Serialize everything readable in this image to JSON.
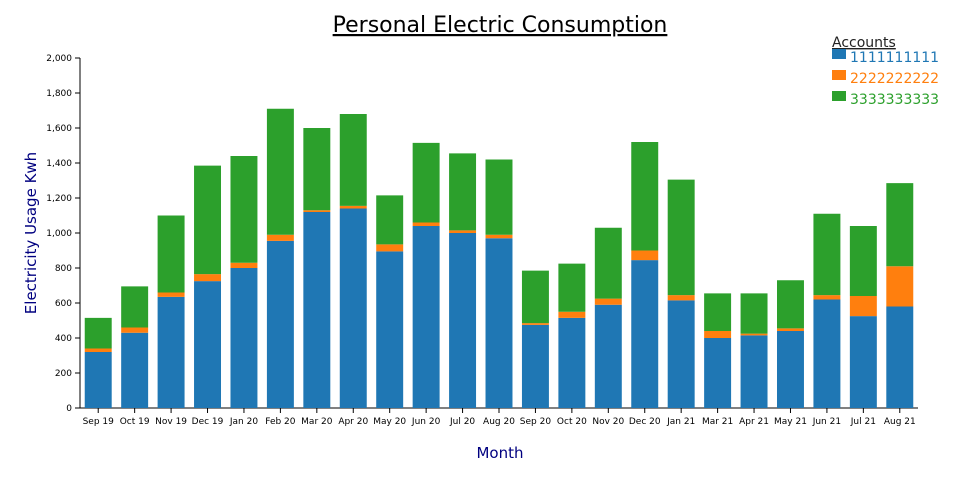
{
  "chart_data": {
    "type": "bar",
    "stacked": true,
    "title": "Personal Electric Consumption",
    "xlabel": "Month",
    "ylabel": "Electricity Usage Kwh",
    "ylim": [
      0,
      2000
    ],
    "yticks": [
      0,
      200,
      400,
      600,
      800,
      1000,
      1200,
      1400,
      1600,
      1800,
      2000
    ],
    "ytick_labels": [
      "0",
      "200",
      "400",
      "600",
      "800",
      "1,000",
      "1,200",
      "1,400",
      "1,600",
      "1,800",
      "2,000"
    ],
    "grid": false,
    "legend": {
      "title": "Accounts",
      "placement": "top-right"
    },
    "categories": [
      "Sep 19",
      "Oct 19",
      "Nov 19",
      "Dec 19",
      "Jan 20",
      "Feb 20",
      "Mar 20",
      "Apr 20",
      "May 20",
      "Jun 20",
      "Jul 20",
      "Aug 20",
      "Sep 20",
      "Oct 20",
      "Nov 20",
      "Dec 20",
      "Jan 21",
      "Mar 21",
      "Apr 21",
      "May 21",
      "Jun 21",
      "Jul 21",
      "Aug 21"
    ],
    "series": [
      {
        "name": "1111111111",
        "color": "#1f77b4",
        "values": [
          320,
          430,
          635,
          725,
          800,
          955,
          1120,
          1140,
          895,
          1040,
          1000,
          970,
          475,
          515,
          590,
          845,
          615,
          400,
          415,
          440,
          620,
          525,
          580
        ]
      },
      {
        "name": "2222222222",
        "color": "#ff7f0e",
        "values": [
          20,
          30,
          25,
          40,
          30,
          35,
          10,
          15,
          40,
          20,
          15,
          20,
          10,
          35,
          35,
          55,
          30,
          40,
          10,
          15,
          25,
          115,
          230
        ]
      },
      {
        "name": "3333333333",
        "color": "#2ca02c",
        "values": [
          175,
          235,
          440,
          620,
          610,
          720,
          470,
          525,
          280,
          455,
          440,
          430,
          300,
          275,
          405,
          620,
          660,
          215,
          230,
          275,
          465,
          400,
          475
        ]
      }
    ]
  }
}
